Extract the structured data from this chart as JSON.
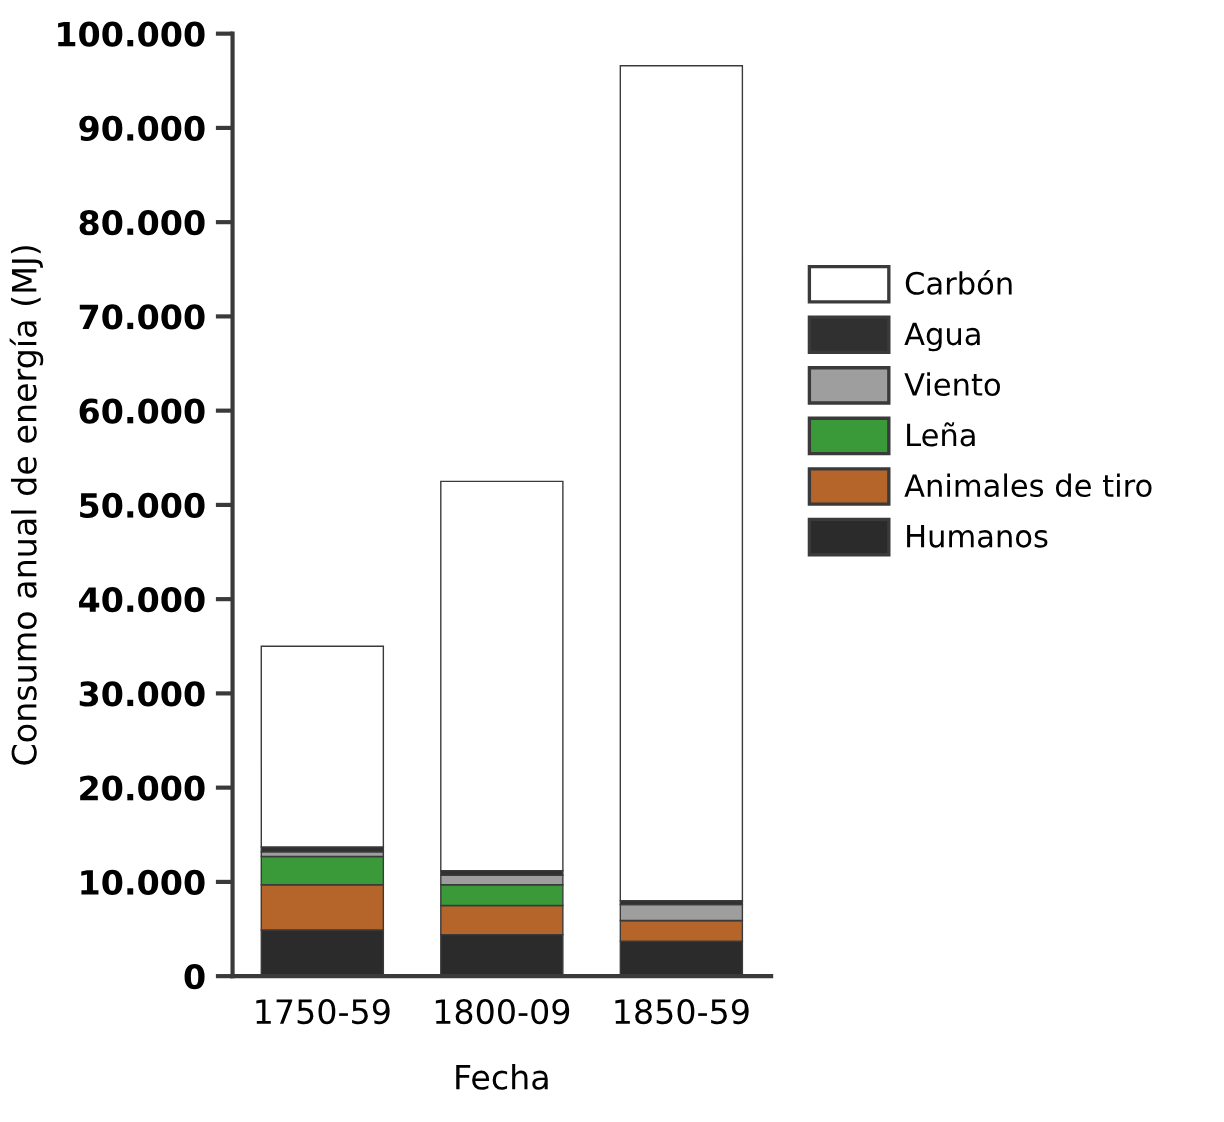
{
  "chart_data": {
    "type": "bar",
    "stacked": true,
    "xlabel": "Fecha",
    "ylabel": "Consumo anual de energía (MJ)",
    "categories": [
      "1750-59",
      "1800-09",
      "1850-59"
    ],
    "series": [
      {
        "name": "Humanos",
        "color": "#2b2b2b",
        "values": [
          4900,
          4400,
          3700
        ]
      },
      {
        "name": "Animales de tiro",
        "color": "#b5652a",
        "values": [
          4800,
          3100,
          2200
        ]
      },
      {
        "name": "Leña",
        "color": "#3a9a3a",
        "values": [
          3000,
          2200,
          0
        ]
      },
      {
        "name": "Viento",
        "color": "#9e9e9e",
        "values": [
          500,
          1000,
          1700
        ]
      },
      {
        "name": "Agua",
        "color": "#303030",
        "values": [
          500,
          500,
          400
        ]
      },
      {
        "name": "Carbón",
        "color": "#ffffff",
        "values": [
          21300,
          41300,
          88600
        ]
      }
    ],
    "ylim": [
      0,
      100000
    ],
    "yticks": [
      0,
      {
        "value": 10000,
        "label": "10.000"
      },
      {
        "value": 20000,
        "label": "20.000"
      },
      {
        "value": 30000,
        "label": "30.000"
      },
      {
        "value": 40000,
        "label": "40.000"
      },
      {
        "value": 50000,
        "label": "50.000"
      },
      {
        "value": 60000,
        "label": "60.000"
      },
      {
        "value": 70000,
        "label": "70.000"
      },
      {
        "value": 80000,
        "label": "80.000"
      },
      {
        "value": 90000,
        "label": "90.000"
      },
      {
        "value": 100000,
        "label": "100.000"
      }
    ],
    "legend": "right",
    "grid": false
  }
}
